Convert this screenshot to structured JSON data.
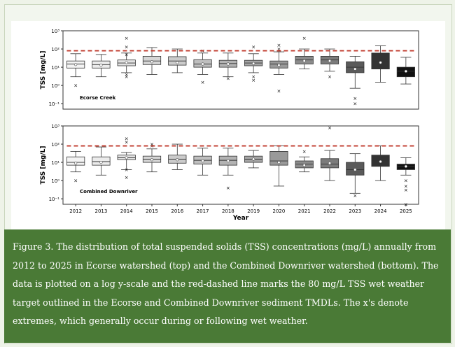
{
  "caption": "Figure 3. The distribution of total suspended solids (TSS) concentrations (mg/L) annually from 2012 to 2025 in Ecorse watershed (top) and the Combined Downriver watershed (bottom). The data is plotted on a log y-scale and the red-dashed line marks the 80 mg/L TSS wet weather target outlined in the Ecorse and Combined Downriver sediment TMDLs. The x's denote extremes, which generally occur during or following wet weather.",
  "chart_data": [
    {
      "type": "box",
      "panel_label": "Ecorse Creek",
      "ylabel": "TSS [mg/L]",
      "xlabel": "Year",
      "yscale": "log",
      "ylim": [
        0.05,
        1000
      ],
      "yticks": [
        "10⁻¹",
        "10⁰",
        "10¹",
        "10²",
        "10³"
      ],
      "target_line": 80,
      "target_color": "#c0392b",
      "categories": [
        "2012",
        "2013",
        "2014",
        "2015",
        "2016",
        "2017",
        "2018",
        "2019",
        "2020",
        "2021",
        "2022",
        "2023",
        "2024",
        "2025"
      ],
      "boxes": [
        {
          "low": 3,
          "q1": 9,
          "median": 15,
          "q3": 22,
          "high": 55,
          "mean": 14,
          "outliers": [
            1
          ]
        },
        {
          "low": 3,
          "q1": 9,
          "median": 14,
          "q3": 22,
          "high": 50,
          "mean": 13,
          "outliers": []
        },
        {
          "low": 5,
          "q1": 12,
          "median": 17,
          "q3": 25,
          "high": 60,
          "mean": 18,
          "outliers": [
            3,
            4,
            50,
            130,
            400
          ]
        },
        {
          "low": 4,
          "q1": 14,
          "median": 22,
          "q3": 40,
          "high": 120,
          "mean": 20,
          "outliers": []
        },
        {
          "low": 5,
          "q1": 13,
          "median": 22,
          "q3": 38,
          "high": 100,
          "mean": 18,
          "outliers": []
        },
        {
          "low": 4,
          "q1": 10,
          "median": 15,
          "q3": 26,
          "high": 60,
          "mean": 15,
          "outliers": [
            1.5,
            80
          ]
        },
        {
          "low": 3,
          "q1": 10,
          "median": 16,
          "q3": 24,
          "high": 60,
          "mean": 15,
          "outliers": [
            2.5
          ]
        },
        {
          "low": 5,
          "q1": 12,
          "median": 17,
          "q3": 24,
          "high": 55,
          "mean": 16,
          "outliers": [
            2,
            3,
            130
          ]
        },
        {
          "low": 4,
          "q1": 9,
          "median": 15,
          "q3": 22,
          "high": 70,
          "mean": 13,
          "outliers": [
            0.5,
            100,
            160
          ]
        },
        {
          "low": 8,
          "q1": 15,
          "median": 25,
          "q3": 40,
          "high": 100,
          "mean": 22,
          "outliers": [
            400
          ]
        },
        {
          "low": 6,
          "q1": 15,
          "median": 25,
          "q3": 40,
          "high": 100,
          "mean": 22,
          "outliers": [
            3
          ]
        },
        {
          "low": 0.7,
          "q1": 5,
          "median": 10,
          "q3": 20,
          "high": 40,
          "mean": 8,
          "outliers": [
            0.1,
            0.2
          ]
        },
        {
          "low": 1.5,
          "q1": 8,
          "median": 20,
          "q3": 60,
          "high": 150,
          "mean": 18,
          "outliers": []
        },
        {
          "low": 1.2,
          "q1": 3,
          "median": 6,
          "q3": 10,
          "high": 35,
          "mean": 6,
          "outliers": []
        }
      ]
    },
    {
      "type": "box",
      "panel_label": "Combined Downriver",
      "ylabel": "TSS [mg/L]",
      "xlabel": "Year",
      "yscale": "log",
      "ylim": [
        0.05,
        1000
      ],
      "yticks": [
        "10⁻¹",
        "10⁰",
        "10¹",
        "10²",
        "10³"
      ],
      "target_line": 80,
      "target_color": "#c0392b",
      "categories": [
        "2012",
        "2013",
        "2014",
        "2015",
        "2016",
        "2017",
        "2018",
        "2019",
        "2020",
        "2021",
        "2022",
        "2023",
        "2024",
        "2025"
      ],
      "boxes": [
        {
          "low": 3,
          "q1": 7,
          "median": 10,
          "q3": 20,
          "high": 40,
          "mean": 9,
          "outliers": [
            1
          ]
        },
        {
          "low": 2,
          "q1": 7,
          "median": 11,
          "q3": 20,
          "high": 70,
          "mean": 10,
          "outliers": []
        },
        {
          "low": 4,
          "q1": 14,
          "median": 18,
          "q3": 25,
          "high": 35,
          "mean": 18,
          "outliers": [
            1.5,
            4,
            130,
            200
          ]
        },
        {
          "low": 3,
          "q1": 10,
          "median": 15,
          "q3": 22,
          "high": 55,
          "mean": 14,
          "outliers": [
            80,
            100
          ]
        },
        {
          "low": 4,
          "q1": 9,
          "median": 15,
          "q3": 25,
          "high": 100,
          "mean": 14,
          "outliers": []
        },
        {
          "low": 2,
          "q1": 8,
          "median": 13,
          "q3": 22,
          "high": 60,
          "mean": 12,
          "outliers": []
        },
        {
          "low": 2,
          "q1": 7,
          "median": 13,
          "q3": 22,
          "high": 60,
          "mean": 12,
          "outliers": [
            0.4
          ]
        },
        {
          "low": 5,
          "q1": 10,
          "median": 15,
          "q3": 22,
          "high": 45,
          "mean": 15,
          "outliers": []
        },
        {
          "low": 0.5,
          "q1": 7,
          "median": 12,
          "q3": 40,
          "high": 80,
          "mean": 10,
          "outliers": []
        },
        {
          "low": 3,
          "q1": 5,
          "median": 8,
          "q3": 12,
          "high": 20,
          "mean": 7,
          "outliers": [
            40
          ]
        },
        {
          "low": 1,
          "q1": 5,
          "median": 8,
          "q3": 16,
          "high": 45,
          "mean": 9,
          "outliers": [
            800
          ]
        },
        {
          "low": 0.2,
          "q1": 2,
          "median": 4,
          "q3": 10,
          "high": 30,
          "mean": 4,
          "outliers": [
            0.15
          ]
        },
        {
          "low": 1,
          "q1": 6,
          "median": 12,
          "q3": 25,
          "high": 80,
          "mean": 11,
          "outliers": []
        },
        {
          "low": 2,
          "q1": 4,
          "median": 6,
          "q3": 8,
          "high": 18,
          "mean": 6,
          "outliers": [
            0.05,
            0.3,
            0.5,
            1
          ]
        }
      ]
    }
  ]
}
